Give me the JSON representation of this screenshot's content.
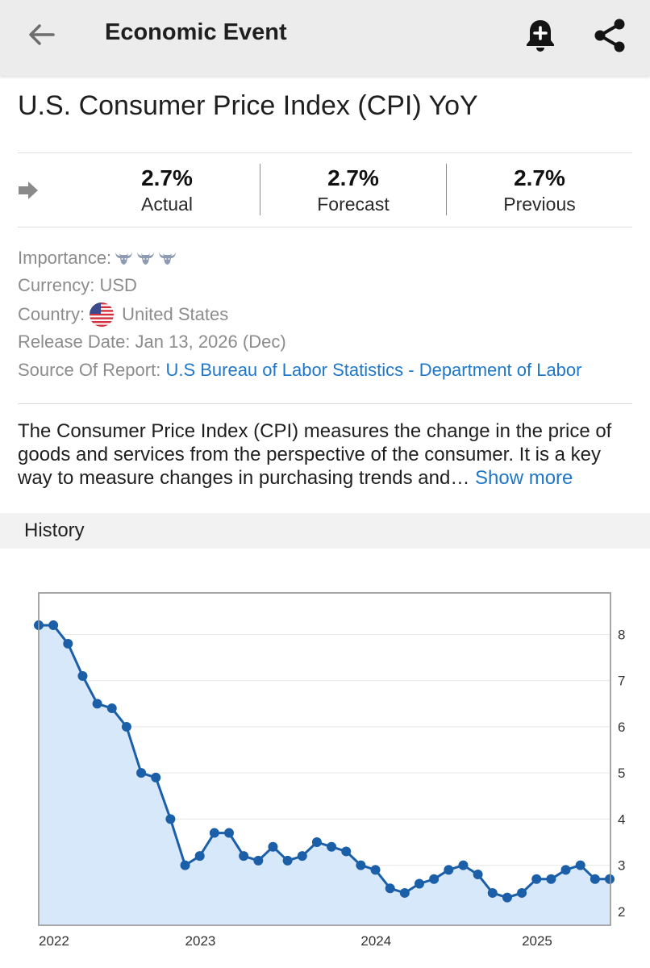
{
  "appbar": {
    "title": "Economic Event",
    "back_icon": "arrow-back-icon",
    "alert_icon": "bell-plus-icon",
    "share_icon": "share-icon"
  },
  "event": {
    "title": "U.S. Consumer Price Index (CPI) YoY"
  },
  "stats": [
    {
      "value": "2.7%",
      "label": "Actual"
    },
    {
      "value": "2.7%",
      "label": "Forecast"
    },
    {
      "value": "2.7%",
      "label": "Previous"
    }
  ],
  "meta": {
    "importance_label": "Importance:",
    "importance_level": 3,
    "currency_label": "Currency:",
    "currency_value": "USD",
    "country_label": "Country:",
    "country_value": "United States",
    "release_label": "Release Date:",
    "release_value": "Jan 13, 2026 (Dec)",
    "source_label": "Source Of Report:",
    "source_value": "U.S Bureau of Labor Statistics - Department of Labor"
  },
  "description": {
    "text": "The Consumer Price Index (CPI) measures the change in the price of goods and services from the perspective of the consumer. It is a key way to measure changes in purchasing trends and…",
    "more_label": "Show more"
  },
  "history": {
    "label": "History"
  },
  "colors": {
    "accent": "#1f77c9",
    "line": "#1a5fa8",
    "fill": "#d8e8fb"
  },
  "chart_data": {
    "type": "area",
    "x_labels": [
      "2022",
      "2023",
      "2024",
      "2025"
    ],
    "label_indices": [
      0,
      10,
      22,
      33
    ],
    "y_ticks": [
      2,
      3,
      4,
      5,
      6,
      7,
      8
    ],
    "ylim": [
      1.7,
      8.9
    ],
    "values": [
      8.2,
      8.2,
      7.8,
      7.1,
      6.5,
      6.4,
      6.0,
      5.0,
      4.9,
      4.0,
      3.0,
      3.2,
      3.7,
      3.7,
      3.2,
      3.1,
      3.4,
      3.1,
      3.2,
      3.5,
      3.4,
      3.3,
      3.0,
      2.9,
      2.5,
      2.4,
      2.6,
      2.7,
      2.9,
      3.0,
      2.8,
      2.4,
      2.3,
      2.4,
      2.7,
      2.7,
      2.9,
      3.0,
      2.7,
      2.7
    ],
    "title": "",
    "xlabel": "",
    "ylabel": ""
  }
}
